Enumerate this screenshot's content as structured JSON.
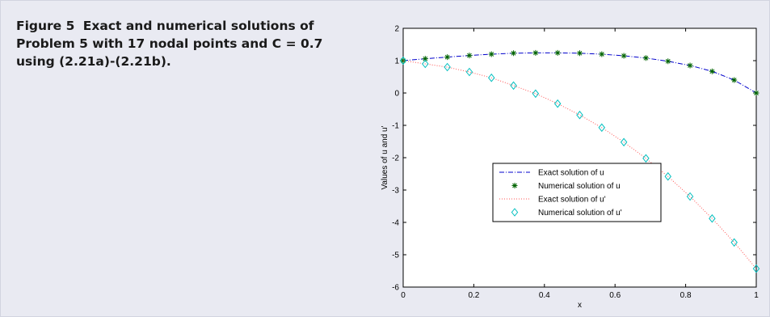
{
  "caption": {
    "label": "Figure 5",
    "text": "Exact and numerical solutions of Problem 5 with 17 nodal points and C = 0.7 using (2.21a)-(2.21b)."
  },
  "colors": {
    "exact_u": "#0000cc",
    "numerical_u": "#006400",
    "exact_du": "#ff5555",
    "numerical_du": "#00bfbf"
  },
  "chart_data": {
    "type": "line",
    "xlabel": "x",
    "ylabel": "Values of u and u'",
    "xlim": [
      0,
      1
    ],
    "ylim": [
      -6,
      2
    ],
    "xticks": [
      "0",
      "0.2",
      "0.4",
      "0.6",
      "0.8",
      "1"
    ],
    "yticks": [
      "-6",
      "-5",
      "-4",
      "-3",
      "-2",
      "-1",
      "0",
      "1",
      "2"
    ],
    "grid": false,
    "legend_position": "center",
    "x": [
      0,
      0.0625,
      0.125,
      0.1875,
      0.25,
      0.3125,
      0.375,
      0.4375,
      0.5,
      0.5625,
      0.625,
      0.6875,
      0.75,
      0.8125,
      0.875,
      0.9375,
      1
    ],
    "series": [
      {
        "name": "Exact solution of u",
        "style": "dash-dot",
        "values": [
          1.0,
          1.06,
          1.11,
          1.16,
          1.2,
          1.23,
          1.24,
          1.24,
          1.23,
          1.2,
          1.15,
          1.08,
          0.98,
          0.85,
          0.67,
          0.4,
          0.0
        ]
      },
      {
        "name": "Numerical solution of u",
        "style": "star-markers",
        "values": [
          1.0,
          1.06,
          1.11,
          1.16,
          1.2,
          1.23,
          1.24,
          1.24,
          1.23,
          1.2,
          1.15,
          1.08,
          0.98,
          0.85,
          0.67,
          0.4,
          0.0
        ]
      },
      {
        "name": "Exact solution of u'",
        "style": "dotted",
        "values": [
          1.0,
          0.9,
          0.8,
          0.65,
          0.47,
          0.23,
          -0.02,
          -0.33,
          -0.68,
          -1.07,
          -1.52,
          -2.02,
          -2.58,
          -3.2,
          -3.88,
          -4.62,
          -5.43
        ]
      },
      {
        "name": "Numerical solution of u'",
        "style": "diamond-markers",
        "values": [
          1.0,
          0.9,
          0.8,
          0.65,
          0.47,
          0.23,
          -0.02,
          -0.33,
          -0.68,
          -1.07,
          -1.52,
          -2.02,
          -2.58,
          -3.2,
          -3.88,
          -4.62,
          -5.43
        ]
      }
    ]
  }
}
